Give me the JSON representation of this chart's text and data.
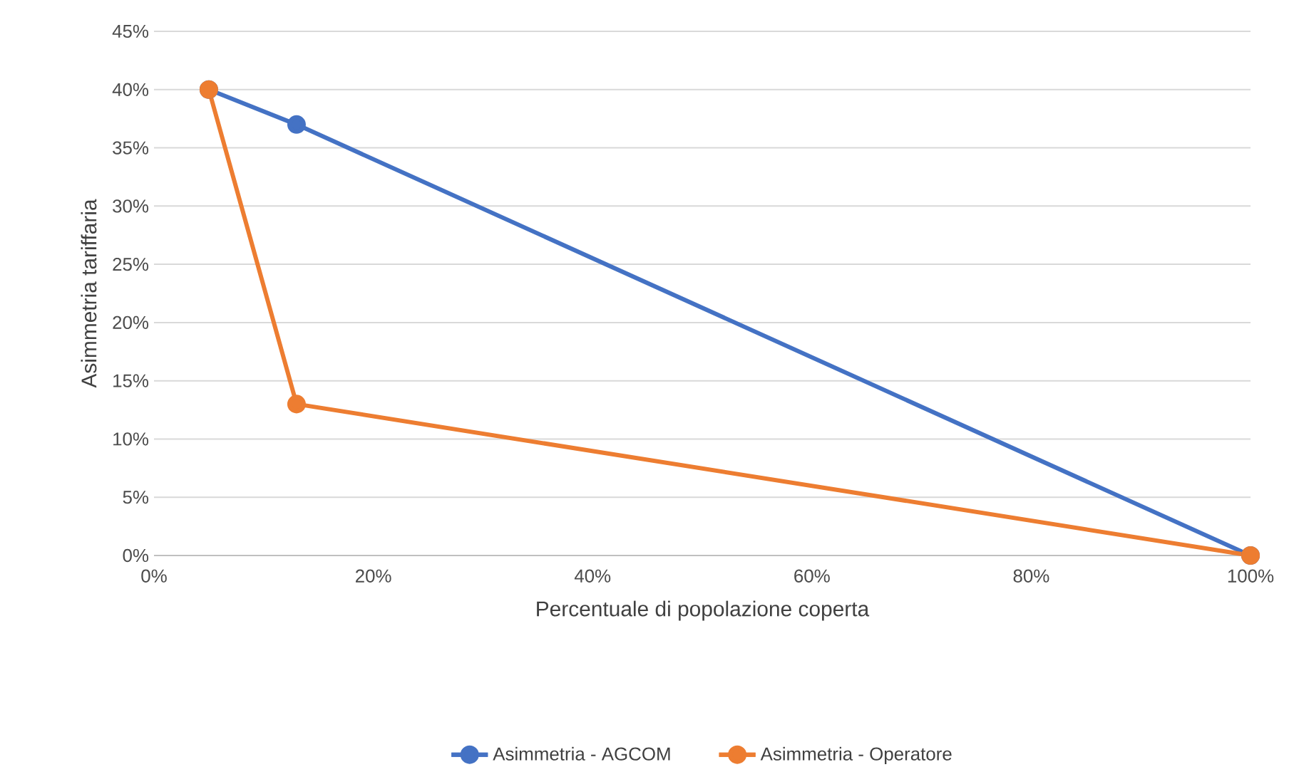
{
  "chart_data": {
    "type": "line",
    "xlabel": "Percentuale di popolazione coperta",
    "ylabel": "Asimmetria tariffaria",
    "x": [
      5,
      13,
      100
    ],
    "series": [
      {
        "name": "Asimmetria - AGCOM",
        "color": "#4472c4",
        "values": [
          40,
          37,
          0
        ]
      },
      {
        "name": "Asimmetria - Operatore",
        "color": "#ed7d31",
        "values": [
          40,
          13,
          0
        ]
      }
    ],
    "xlim": [
      0,
      100
    ],
    "xticks": [
      {
        "value": 0,
        "label": "0%"
      },
      {
        "value": 20,
        "label": "20%"
      },
      {
        "value": 40,
        "label": "40%"
      },
      {
        "value": 60,
        "label": "60%"
      },
      {
        "value": 80,
        "label": "80%"
      },
      {
        "value": 100,
        "label": "100%"
      }
    ],
    "ylim": [
      0,
      45
    ],
    "yticks": [
      {
        "value": 0,
        "label": "0%"
      },
      {
        "value": 5,
        "label": "5%"
      },
      {
        "value": 10,
        "label": "10%"
      },
      {
        "value": 15,
        "label": "15%"
      },
      {
        "value": 20,
        "label": "20%"
      },
      {
        "value": 25,
        "label": "25%"
      },
      {
        "value": 30,
        "label": "30%"
      },
      {
        "value": 35,
        "label": "35%"
      },
      {
        "value": 40,
        "label": "40%"
      },
      {
        "value": 45,
        "label": "45%"
      }
    ],
    "grid": "y",
    "legend": "bottom",
    "marker": "circle",
    "line_style": "solid"
  }
}
